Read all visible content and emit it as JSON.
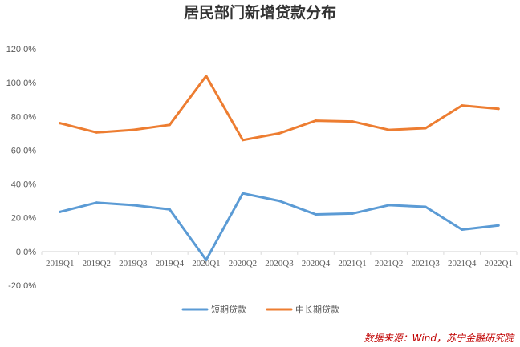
{
  "chart_data": {
    "type": "line",
    "title": "居民部门新增贷款分布",
    "xlabel": "",
    "ylabel": "",
    "categories": [
      "2019Q1",
      "2019Q2",
      "2019Q3",
      "2019Q4",
      "2020Q1",
      "2020Q2",
      "2020Q3",
      "2020Q4",
      "2021Q1",
      "2021Q2",
      "2021Q3",
      "2021Q4",
      "2022Q1"
    ],
    "series": [
      {
        "name": "短期贷款",
        "color": "#5b9bd5",
        "values": [
          23.5,
          29.0,
          27.5,
          25.0,
          -5.0,
          34.5,
          30.0,
          22.0,
          22.5,
          27.5,
          26.5,
          13.0,
          15.5
        ]
      },
      {
        "name": "中长期贷款",
        "color": "#ed7d31",
        "values": [
          76.0,
          70.5,
          72.0,
          75.0,
          104.0,
          66.0,
          70.0,
          77.5,
          77.0,
          72.0,
          73.0,
          86.5,
          84.5
        ]
      }
    ],
    "ylim": [
      -20,
      120
    ],
    "yticks": [
      "-20.0%",
      "0.0%",
      "20.0%",
      "40.0%",
      "60.0%",
      "80.0%",
      "100.0%",
      "120.0%"
    ],
    "ytick_values": [
      -20,
      0,
      20,
      40,
      60,
      80,
      100,
      120
    ],
    "grid": false,
    "legend_position": "bottom"
  },
  "source_note": "数据来源：Wind，苏宁金融研究院"
}
